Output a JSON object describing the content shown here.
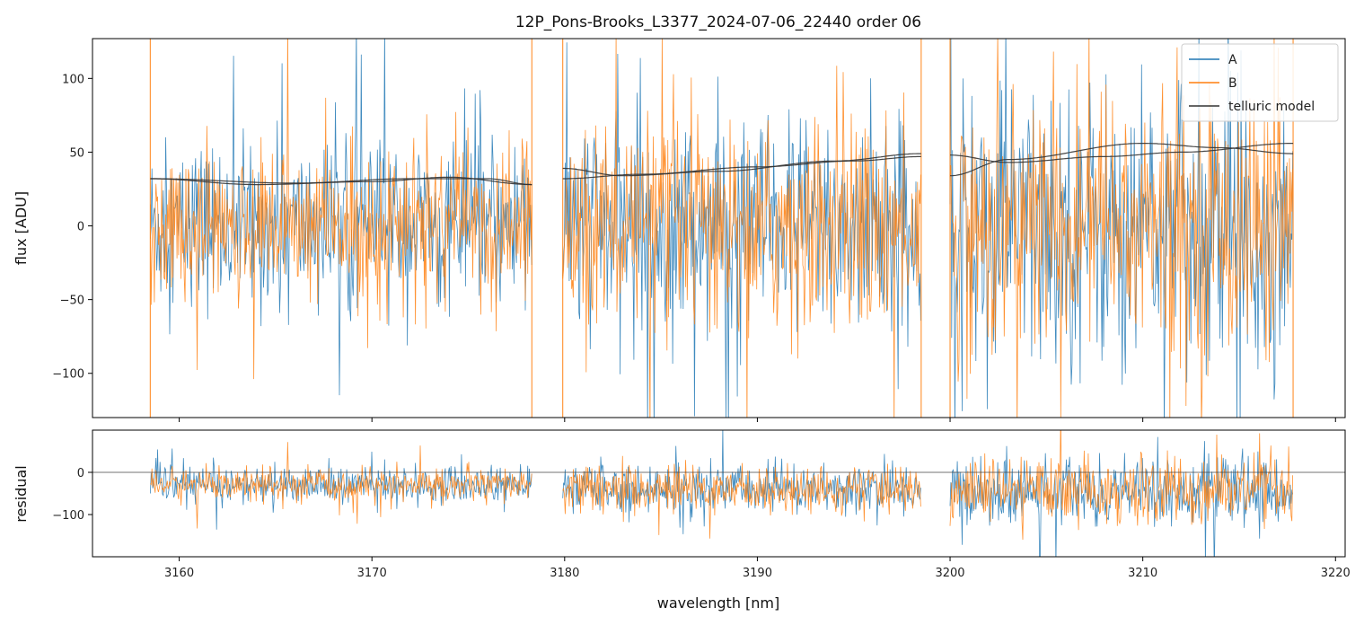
{
  "chart_data": {
    "type": "line",
    "title": "12P_Pons-Brooks_L3377_2024-07-06_22440  order 06",
    "xlabel": "wavelength [nm]",
    "xlim": [
      3155.5,
      3220.5
    ],
    "x_ticks": [
      3160,
      3170,
      3180,
      3190,
      3200,
      3210,
      3220
    ],
    "x_tick_labels": [
      "3160",
      "3170",
      "3180",
      "3190",
      "3200",
      "3210",
      "3220"
    ],
    "colors": {
      "A": "#1f77b4",
      "B": "#ff7f0e",
      "telluric": "#333333",
      "zero_line": "#444444"
    },
    "segments": [
      {
        "x_start": 3158.5,
        "x_end": 3178.3
      },
      {
        "x_start": 3179.9,
        "x_end": 3198.5
      },
      {
        "x_start": 3200.0,
        "x_end": 3217.8
      }
    ],
    "panels": [
      {
        "name": "flux",
        "ylabel": "flux [ADU]",
        "ylim": [
          -130,
          127
        ],
        "y_ticks": [
          100,
          50,
          0,
          -50,
          -100
        ],
        "y_tick_labels": [
          "100",
          "50",
          "0",
          "−50",
          "−100"
        ],
        "series": [
          {
            "name": "A",
            "noise_sigma": [
              28,
              38,
              48
            ]
          },
          {
            "name": "B",
            "noise_sigma": [
              26,
              36,
              46
            ]
          }
        ],
        "telluric_model": [
          {
            "x": [
              3158.5,
              3164,
              3170,
              3174,
              3178.3
            ],
            "y": [
              32,
              28,
              30,
              33,
              28
            ]
          },
          {
            "x": [
              3158.5,
              3166,
              3172,
              3176,
              3178.3
            ],
            "y": [
              32,
              29,
              32,
              32,
              28
            ]
          },
          {
            "x": [
              3179.9,
              3184,
              3190,
              3195,
              3198.5
            ],
            "y": [
              32,
              35,
              40,
              44,
              47
            ]
          },
          {
            "x": [
              3179.9,
              3183,
              3188,
              3194,
              3198.5
            ],
            "y": [
              39,
              34,
              37,
              44,
              49
            ]
          },
          {
            "x": [
              3200.0,
              3203,
              3210,
              3214,
              3217.8
            ],
            "y": [
              34,
              45,
              56,
              53,
              49
            ]
          },
          {
            "x": [
              3200.0,
              3203,
              3208,
              3212,
              3217.8
            ],
            "y": [
              48,
              43,
              47,
              50,
              56
            ]
          }
        ]
      },
      {
        "name": "residual",
        "ylabel": "residual",
        "ylim": [
          -200,
          100
        ],
        "y_ticks": [
          0,
          -100
        ],
        "y_tick_labels": [
          "0",
          "−100"
        ],
        "zero_line": 0,
        "series": [
          {
            "name": "A",
            "noise_sigma": [
              22,
              30,
              40
            ],
            "offset": [
              -30,
              -40,
              -45
            ]
          },
          {
            "name": "B",
            "noise_sigma": [
              20,
              28,
              38
            ],
            "offset": [
              -30,
              -40,
              -45
            ]
          }
        ]
      }
    ],
    "legend": {
      "placement": "top-right",
      "entries": [
        {
          "label": "A",
          "color": "#1f77b4"
        },
        {
          "label": "B",
          "color": "#ff7f0e"
        },
        {
          "label": "telluric model",
          "color": "#333333"
        }
      ]
    }
  }
}
